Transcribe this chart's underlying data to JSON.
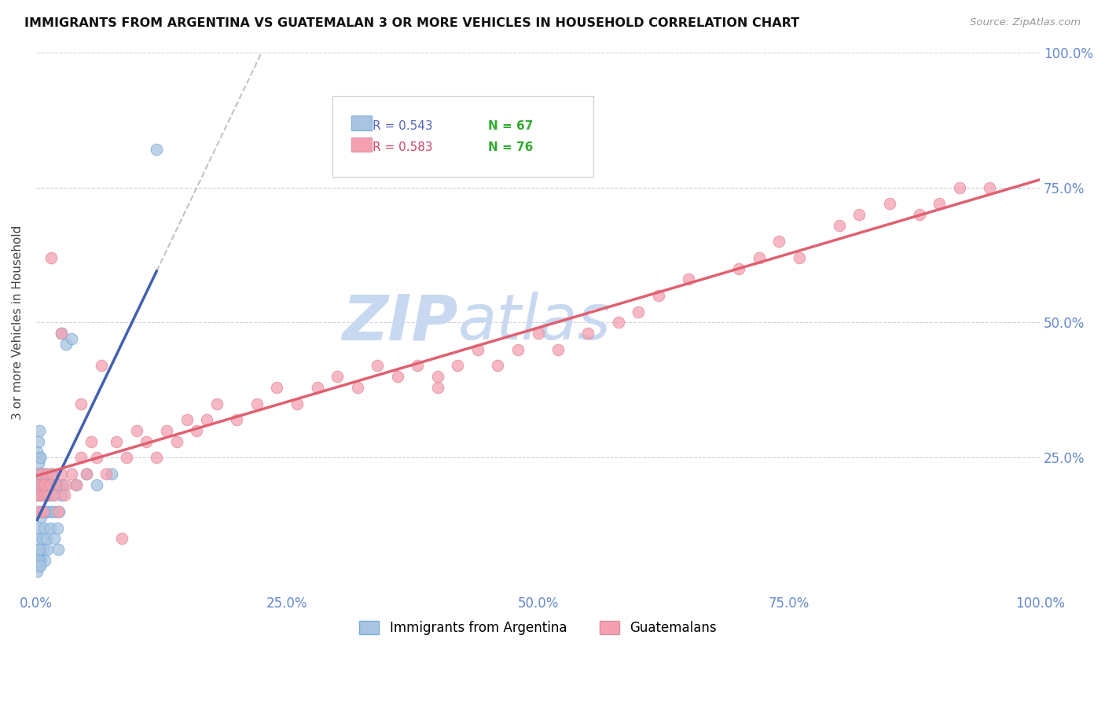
{
  "title": "IMMIGRANTS FROM ARGENTINA VS GUATEMALAN 3 OR MORE VEHICLES IN HOUSEHOLD CORRELATION CHART",
  "source": "Source: ZipAtlas.com",
  "ylabel": "3 or more Vehicles in Household",
  "legend_label1": "Immigrants from Argentina",
  "legend_label2": "Guatemalans",
  "R1": 0.543,
  "N1": 67,
  "R2": 0.583,
  "N2": 76,
  "color_argentina": "#a8c4e0",
  "color_guatemalan": "#f4a0b0",
  "color_argentina_line": "#4060b0",
  "color_guatemalan_line": "#e06070",
  "color_tick": "#6688cc",
  "xlim": [
    0,
    1.0
  ],
  "ylim": [
    0,
    1.0
  ],
  "xticks": [
    0,
    0.25,
    0.5,
    0.75,
    1.0
  ],
  "yticks": [
    0,
    0.25,
    0.5,
    0.75,
    1.0
  ],
  "xtick_labels": [
    "0.0%",
    "25.0%",
    "50.0%",
    "75.0%",
    "100.0%"
  ],
  "ytick_labels": [
    "",
    "25.0%",
    "50.0%",
    "75.0%",
    "100.0%"
  ],
  "arg_x": [
    0.001,
    0.001,
    0.002,
    0.002,
    0.002,
    0.003,
    0.003,
    0.003,
    0.004,
    0.004,
    0.004,
    0.005,
    0.005,
    0.005,
    0.006,
    0.006,
    0.007,
    0.007,
    0.008,
    0.008,
    0.009,
    0.009,
    0.01,
    0.01,
    0.011,
    0.011,
    0.012,
    0.013,
    0.014,
    0.015,
    0.016,
    0.017,
    0.018,
    0.019,
    0.02,
    0.021,
    0.022,
    0.023,
    0.025,
    0.027,
    0.001,
    0.002,
    0.003,
    0.004,
    0.002,
    0.003,
    0.001,
    0.002,
    0.003,
    0.004,
    0.005,
    0.006,
    0.007,
    0.008,
    0.009,
    0.01,
    0.012,
    0.015,
    0.02,
    0.025,
    0.03,
    0.035,
    0.04,
    0.05,
    0.06,
    0.075,
    0.12
  ],
  "arg_y": [
    0.18,
    0.1,
    0.22,
    0.08,
    0.15,
    0.2,
    0.12,
    0.05,
    0.18,
    0.25,
    0.07,
    0.22,
    0.14,
    0.06,
    0.2,
    0.1,
    0.15,
    0.08,
    0.18,
    0.12,
    0.22,
    0.06,
    0.2,
    0.1,
    0.15,
    0.08,
    0.18,
    0.2,
    0.12,
    0.15,
    0.18,
    0.2,
    0.1,
    0.15,
    0.2,
    0.12,
    0.08,
    0.15,
    0.18,
    0.2,
    0.04,
    0.06,
    0.08,
    0.05,
    0.24,
    0.22,
    0.26,
    0.28,
    0.3,
    0.25,
    0.2,
    0.22,
    0.18,
    0.2,
    0.15,
    0.18,
    0.2,
    0.22,
    0.2,
    0.48,
    0.46,
    0.47,
    0.2,
    0.22,
    0.2,
    0.22,
    0.82
  ],
  "guat_x": [
    0.001,
    0.002,
    0.003,
    0.004,
    0.005,
    0.006,
    0.007,
    0.008,
    0.009,
    0.01,
    0.012,
    0.014,
    0.016,
    0.018,
    0.02,
    0.022,
    0.025,
    0.028,
    0.03,
    0.035,
    0.04,
    0.045,
    0.05,
    0.055,
    0.06,
    0.07,
    0.08,
    0.09,
    0.1,
    0.11,
    0.12,
    0.13,
    0.14,
    0.15,
    0.16,
    0.17,
    0.18,
    0.2,
    0.22,
    0.24,
    0.26,
    0.28,
    0.3,
    0.32,
    0.34,
    0.36,
    0.38,
    0.4,
    0.42,
    0.44,
    0.46,
    0.48,
    0.5,
    0.52,
    0.55,
    0.58,
    0.6,
    0.62,
    0.65,
    0.7,
    0.72,
    0.74,
    0.76,
    0.8,
    0.82,
    0.85,
    0.88,
    0.9,
    0.92,
    0.95,
    0.015,
    0.025,
    0.045,
    0.065,
    0.085,
    0.4
  ],
  "guat_y": [
    0.18,
    0.2,
    0.15,
    0.22,
    0.18,
    0.2,
    0.15,
    0.18,
    0.2,
    0.22,
    0.18,
    0.2,
    0.22,
    0.18,
    0.2,
    0.15,
    0.22,
    0.18,
    0.2,
    0.22,
    0.2,
    0.25,
    0.22,
    0.28,
    0.25,
    0.22,
    0.28,
    0.25,
    0.3,
    0.28,
    0.25,
    0.3,
    0.28,
    0.32,
    0.3,
    0.32,
    0.35,
    0.32,
    0.35,
    0.38,
    0.35,
    0.38,
    0.4,
    0.38,
    0.42,
    0.4,
    0.42,
    0.38,
    0.42,
    0.45,
    0.42,
    0.45,
    0.48,
    0.45,
    0.48,
    0.5,
    0.52,
    0.55,
    0.58,
    0.6,
    0.62,
    0.65,
    0.62,
    0.68,
    0.7,
    0.72,
    0.7,
    0.72,
    0.75,
    0.75,
    0.62,
    0.48,
    0.35,
    0.42,
    0.1,
    0.4
  ]
}
